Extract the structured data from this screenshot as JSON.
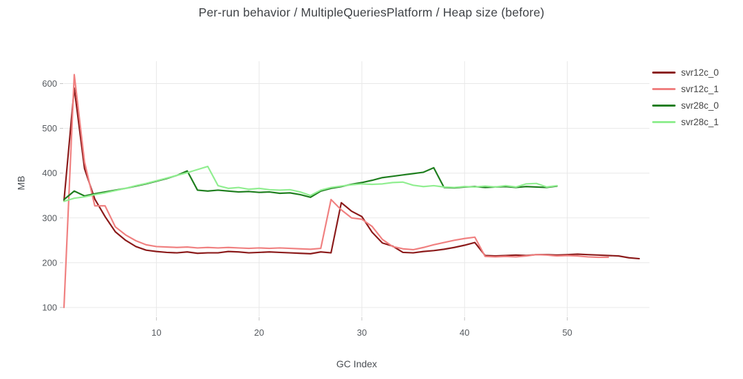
{
  "title": "Per-run behavior / MultipleQueriesPlatform / Heap size (before)",
  "colors": {
    "grid": "#e8e8e8",
    "tick": "#c4c4c4",
    "title_text": "#3f4246",
    "tick_label_text": "#55595e",
    "axis_label_text": "#4a4e53",
    "legend_text": "#444444"
  },
  "chart_data": {
    "type": "line",
    "title": "Per-run behavior / MultipleQueriesPlatform / Heap size (before)",
    "xlabel": "GC Index",
    "ylabel": "MB",
    "x_description": "x values are GC indices 1..N per series (implicit, step 1)",
    "xlim": [
      1,
      58
    ],
    "ylim": [
      80,
      650
    ],
    "x_ticks": [
      10,
      20,
      30,
      40,
      50
    ],
    "y_ticks": [
      100,
      200,
      300,
      400,
      500,
      600
    ],
    "grid": true,
    "legend_position": "right",
    "series": [
      {
        "name": "svr12c_0",
        "color": "#8b1a1a",
        "x_start": 1,
        "values": [
          338,
          590,
          410,
          342,
          303,
          269,
          250,
          236,
          228,
          225,
          223,
          222,
          224,
          221,
          222,
          222,
          225,
          224,
          222,
          223,
          224,
          223,
          222,
          221,
          220,
          224,
          222,
          334,
          315,
          303,
          268,
          244,
          237,
          223,
          222,
          225,
          227,
          230,
          234,
          239,
          245,
          216,
          215,
          216,
          217,
          216,
          218,
          218,
          217,
          218,
          219,
          218,
          217,
          216,
          215,
          211,
          209
        ]
      },
      {
        "name": "svr12c_1",
        "color": "#f08080",
        "x_start": 1,
        "values": [
          100,
          620,
          425,
          327,
          327,
          280,
          262,
          249,
          240,
          236,
          235,
          234,
          235,
          233,
          234,
          233,
          234,
          233,
          232,
          233,
          232,
          233,
          232,
          231,
          230,
          232,
          341,
          318,
          300,
          297,
          281,
          252,
          236,
          231,
          229,
          234,
          240,
          245,
          250,
          254,
          257,
          214,
          213,
          214,
          213,
          215,
          218,
          217,
          215,
          216,
          215,
          213,
          212,
          212
        ]
      },
      {
        "name": "svr28c_0",
        "color": "#1e7e1e",
        "x_start": 1,
        "values": [
          341,
          360,
          349,
          354,
          358,
          362,
          366,
          371,
          376,
          382,
          388,
          395,
          405,
          362,
          360,
          362,
          360,
          358,
          359,
          357,
          358,
          355,
          356,
          352,
          346,
          360,
          366,
          370,
          375,
          379,
          384,
          390,
          393,
          396,
          399,
          402,
          412,
          368,
          367,
          369,
          370,
          368,
          369,
          370,
          368,
          370,
          369,
          368,
          371
        ]
      },
      {
        "name": "svr28c_1",
        "color": "#90ee90",
        "x_start": 1,
        "values": [
          337,
          344,
          347,
          352,
          356,
          361,
          366,
          372,
          377,
          383,
          389,
          395,
          401,
          408,
          415,
          372,
          366,
          368,
          364,
          366,
          363,
          362,
          363,
          358,
          350,
          362,
          368,
          371,
          374,
          376,
          375,
          376,
          379,
          380,
          373,
          370,
          372,
          369,
          368,
          370,
          369,
          371,
          369,
          372,
          369,
          376,
          377,
          369,
          372
        ]
      }
    ]
  }
}
